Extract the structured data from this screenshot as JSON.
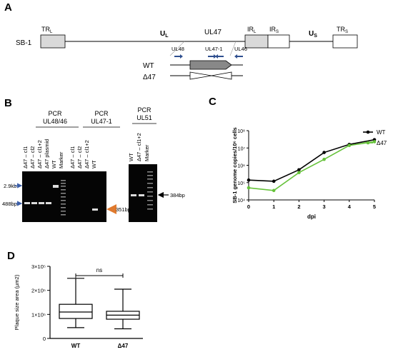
{
  "panels": {
    "A": {
      "letter": "A",
      "genome_label": "SB-1",
      "regions": {
        "TRL": "TR",
        "TRL_sub": "L",
        "UL": "U",
        "UL_sub": "L",
        "IRL": "IR",
        "IRL_sub": "L",
        "IRS": "IR",
        "IRS_sub": "S",
        "US": "U",
        "US_sub": "S",
        "TRS": "TR",
        "TRS_sub": "S"
      },
      "gene": "UL47",
      "primers": [
        "UL48",
        "UL47-1",
        "UL46"
      ],
      "rows": [
        "WT",
        "Δ47"
      ]
    },
    "B": {
      "letter": "B",
      "gel1_title": [
        "PCR",
        "UL48/46"
      ],
      "gel1_lanes": [
        "Δ47 – cl1",
        "Δ47 – cl2",
        "Δ47 – cl1+2",
        "Δ47 plasmid",
        "WT",
        "Marker"
      ],
      "gel2_title": [
        "PCR",
        "UL47-1"
      ],
      "gel2_lanes": [
        "Δ47 – cl1",
        "Δ47 – cl2",
        "Δ47 – cl1+2",
        "WT"
      ],
      "gel3_title": [
        "PCR",
        "UL51"
      ],
      "gel3_lanes": [
        "WT",
        "Δ47 – cl1+2",
        "Marker"
      ],
      "size_labels": [
        "2.9kb",
        "488bp",
        "351bp",
        "384bp"
      ]
    },
    "C": {
      "letter": "C",
      "colors": {
        "WT": "#000000",
        "D47": "#66c23a"
      }
    },
    "D": {
      "letter": "D",
      "significance": "ns"
    }
  },
  "chart_data": [
    {
      "type": "line",
      "panel": "C",
      "xlabel": "dpi",
      "ylabel": "SB-1 genome copies/10⁶ cells",
      "x": [
        0,
        1,
        2,
        3,
        4,
        5
      ],
      "xticks": [
        "0",
        "1",
        "2",
        "3",
        "4",
        "5"
      ],
      "yticks": [
        "10⁴",
        "10⁵",
        "10⁶",
        "10⁷",
        "10⁸"
      ],
      "yscale": "log",
      "ylim": [
        10000,
        100000000
      ],
      "xlim": [
        0,
        5
      ],
      "series": [
        {
          "name": "WT",
          "values": [
            140000,
            120000,
            550000,
            5500000,
            16000000,
            30000000
          ]
        },
        {
          "name": "Δ47",
          "values": [
            50000,
            35000,
            380000,
            2200000,
            14000000,
            23000000
          ]
        }
      ],
      "legend": "top-right"
    },
    {
      "type": "boxplot",
      "panel": "D",
      "ylabel": "Plaque size area (µm2)",
      "categories": [
        "WT",
        "Δ47"
      ],
      "yticks": [
        "0",
        "1×10⁵",
        "2×10⁵",
        "3×10⁵"
      ],
      "ylim": [
        0,
        300000
      ],
      "boxes": [
        {
          "name": "WT",
          "min": 45000,
          "q1": 83000,
          "median": 110000,
          "q3": 142000,
          "max": 250000
        },
        {
          "name": "Δ47",
          "min": 40000,
          "q1": 80000,
          "median": 97000,
          "q3": 113000,
          "max": 205000
        }
      ]
    }
  ]
}
